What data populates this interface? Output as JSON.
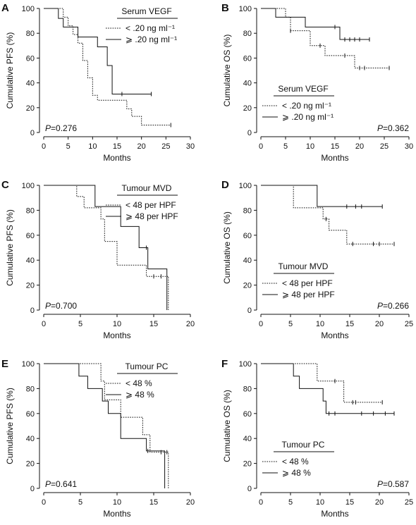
{
  "chart_data": [
    {
      "type": "line",
      "panel": "A",
      "ylabel": "Cumulative PFS (%)",
      "xlabel": "Months",
      "xlim": [
        0,
        30
      ],
      "ylim": [
        0,
        100
      ],
      "xticks": [
        "0",
        "5",
        "10",
        "15",
        "20",
        "25",
        "30"
      ],
      "yticks": [
        "0",
        "20",
        "40",
        "60",
        "80",
        "100"
      ],
      "legend_title": "Serum VEGF",
      "legend_position": "top-right",
      "pvalue_prefix": "P",
      "pvalue_text": "=0.276",
      "pvalue_position": "bottom-left",
      "series": [
        {
          "name": "< .20 ng ml⁻¹",
          "style": "dotted",
          "x": [
            0,
            4,
            5,
            6,
            7,
            8,
            9,
            10,
            11,
            13,
            17,
            18,
            20,
            26
          ],
          "y": [
            100,
            93,
            86,
            79,
            72,
            58,
            44,
            30,
            26,
            26,
            19,
            13,
            6,
            6
          ],
          "censored_x": [
            26
          ]
        },
        {
          "name": "⩾ .20 ng ml⁻¹",
          "style": "solid",
          "x": [
            0,
            3,
            4,
            7,
            8,
            11,
            13,
            14,
            16,
            22
          ],
          "y": [
            100,
            92,
            85,
            77,
            77,
            69,
            54,
            31,
            31,
            31
          ],
          "censored_x": [
            16,
            22
          ]
        }
      ]
    },
    {
      "type": "line",
      "panel": "B",
      "ylabel": "Cumulative OS (%)",
      "xlabel": "Months",
      "xlim": [
        0,
        30
      ],
      "ylim": [
        0,
        100
      ],
      "xticks": [
        "0",
        "5",
        "10",
        "15",
        "20",
        "25",
        "30"
      ],
      "yticks": [
        "0",
        "20",
        "40",
        "60",
        "80",
        "100"
      ],
      "legend_title": "Serum VEGF",
      "legend_position": "bottom-left",
      "pvalue_prefix": "P",
      "pvalue_text": "=0.362",
      "pvalue_position": "bottom-right",
      "series": [
        {
          "name": "< .20 ng ml⁻¹",
          "style": "dotted",
          "x": [
            0,
            5,
            6,
            9,
            10,
            13,
            19,
            20,
            26
          ],
          "y": [
            100,
            93,
            82,
            82,
            70,
            62,
            52,
            52,
            52
          ],
          "censored_x": [
            6,
            12,
            17,
            20,
            21,
            26
          ]
        },
        {
          "name": "⩾ .20 ng ml⁻¹",
          "style": "solid",
          "x": [
            0,
            3,
            5,
            9,
            16,
            22
          ],
          "y": [
            100,
            93,
            93,
            85,
            75,
            75
          ],
          "censored_x": [
            15,
            17,
            18,
            19,
            20,
            22
          ]
        }
      ]
    },
    {
      "type": "line",
      "panel": "C",
      "ylabel": "Cumulative PFS (%)",
      "xlabel": "Months",
      "xlim": [
        0,
        20
      ],
      "ylim": [
        0,
        100
      ],
      "xticks": [
        "0",
        "5",
        "10",
        "15",
        "20"
      ],
      "yticks": [
        "0",
        "20",
        "40",
        "60",
        "80",
        "100"
      ],
      "legend_title": "Tumour MVD",
      "legend_position": "top-right",
      "pvalue_prefix": "P",
      "pvalue_text": "=0.700",
      "pvalue_position": "bottom-left",
      "series": [
        {
          "name": "< 48 per HPF",
          "style": "dotted",
          "x": [
            0,
            4.5,
            5.5,
            7.8,
            8.3,
            10,
            14,
            17
          ],
          "y": [
            100,
            91,
            82,
            73,
            55,
            36,
            27,
            0
          ],
          "censored_x": [
            15,
            16
          ]
        },
        {
          "name": "⩾ 48 per HPF",
          "style": "solid",
          "x": [
            0,
            7,
            10.5,
            13,
            14.2,
            16.8
          ],
          "y": [
            100,
            83,
            67,
            50,
            33,
            0
          ],
          "censored_x": [
            14
          ]
        }
      ]
    },
    {
      "type": "line",
      "panel": "D",
      "ylabel": "Cumulative OS (%)",
      "xlabel": "Months",
      "xlim": [
        0,
        25
      ],
      "ylim": [
        0,
        100
      ],
      "xticks": [
        "0",
        "5",
        "10",
        "15",
        "20",
        "25"
      ],
      "yticks": [
        "0",
        "20",
        "40",
        "60",
        "80",
        "100"
      ],
      "legend_title": "Tumour MVD",
      "legend_position": "bottom-left",
      "pvalue_prefix": "P",
      "pvalue_text": "=0.266",
      "pvalue_position": "bottom-right",
      "series": [
        {
          "name": "< 48 per HPF",
          "style": "dotted",
          "x": [
            0,
            5.5,
            9.5,
            10.5,
            11.5,
            14.5,
            22.5
          ],
          "y": [
            100,
            82,
            82,
            73,
            64,
            53,
            53
          ],
          "censored_x": [
            11,
            15.5,
            19,
            20,
            22.5
          ]
        },
        {
          "name": "⩾ 48 per HPF",
          "style": "solid",
          "x": [
            0,
            9.5,
            20.5
          ],
          "y": [
            100,
            83,
            83
          ],
          "censored_x": [
            14.5,
            16,
            17,
            20.5
          ]
        }
      ]
    },
    {
      "type": "line",
      "panel": "E",
      "ylabel": "Cumulative PFS (%)",
      "xlabel": "Months",
      "xlim": [
        0,
        20
      ],
      "ylim": [
        0,
        100
      ],
      "xticks": [
        "0",
        "5",
        "10",
        "15",
        "20"
      ],
      "yticks": [
        "0",
        "20",
        "40",
        "60",
        "80",
        "100"
      ],
      "legend_title": "Tumour PC",
      "legend_position": "top-right",
      "pvalue_prefix": "P",
      "pvalue_text": "=0.641",
      "pvalue_position": "bottom-left",
      "series": [
        {
          "name": "< 48 %",
          "style": "dotted",
          "x": [
            0,
            7.8,
            8.3,
            10.5,
            13.5,
            14.5,
            17
          ],
          "y": [
            100,
            86,
            71,
            57,
            43,
            29,
            0
          ],
          "censored_x": [
            16,
            16.8
          ]
        },
        {
          "name": "⩾ 48 %",
          "style": "solid",
          "x": [
            0,
            4.8,
            6,
            8,
            8.8,
            10.5,
            14,
            16.5
          ],
          "y": [
            100,
            90,
            80,
            70,
            60,
            40,
            30,
            0
          ],
          "censored_x": [
            14.2
          ]
        }
      ]
    },
    {
      "type": "line",
      "panel": "F",
      "ylabel": "Cumulative OS (%)",
      "xlabel": "Months",
      "xlim": [
        0,
        25
      ],
      "ylim": [
        0,
        100
      ],
      "xticks": [
        "0",
        "5",
        "10",
        "15",
        "20",
        "25"
      ],
      "yticks": [
        "0",
        "20",
        "40",
        "60",
        "80",
        "100"
      ],
      "legend_title": "Tumour PC",
      "legend_position": "bottom-left",
      "pvalue_prefix": "P",
      "pvalue_text": "=0.587",
      "pvalue_position": "bottom-right",
      "series": [
        {
          "name": "< 48 %",
          "style": "dotted",
          "x": [
            0,
            9.5,
            14,
            20.5
          ],
          "y": [
            100,
            86,
            69,
            69
          ],
          "censored_x": [
            12.5,
            15.5,
            16,
            20.5
          ]
        },
        {
          "name": "⩾ 48 %",
          "style": "solid",
          "x": [
            0,
            5.5,
            6.5,
            10.5,
            11,
            22.5
          ],
          "y": [
            100,
            90,
            80,
            70,
            60,
            60
          ],
          "censored_x": [
            11.5,
            12.5,
            17,
            19,
            21,
            22.5
          ]
        }
      ]
    }
  ]
}
